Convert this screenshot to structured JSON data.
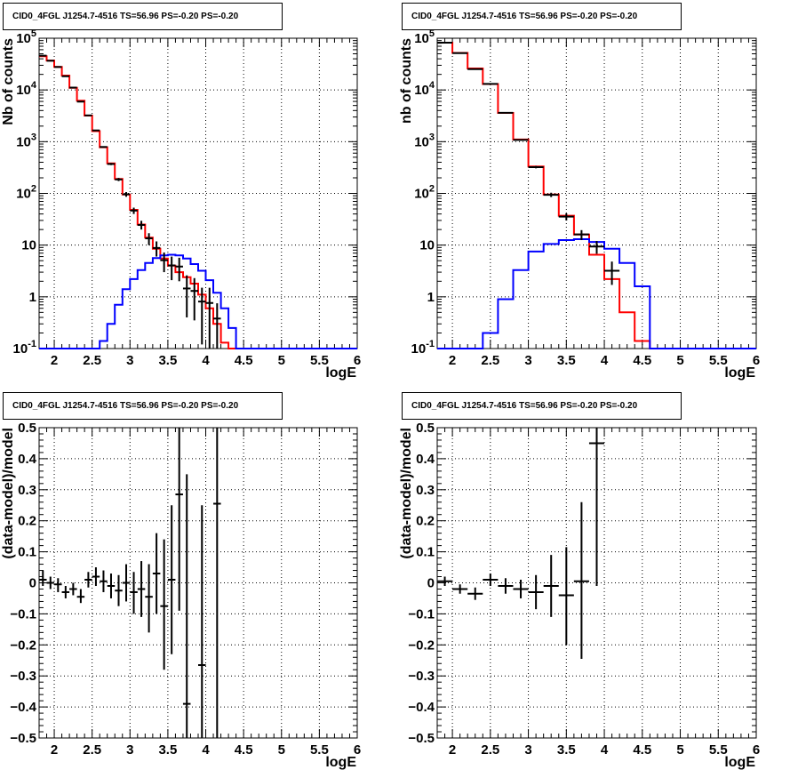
{
  "chart_data": [
    {
      "type": "histogram",
      "title": "CID0_4FGL J1254.7-4516 TS=56.96 PS=-0.20 PS=-0.20",
      "xlabel": "logE",
      "ylabel": "Nb of counts",
      "xlim": [
        1.8,
        6.0
      ],
      "ylim": [
        0.1,
        100000
      ],
      "yscale": "log",
      "grid": true,
      "xticks": [
        "2",
        "2.5",
        "3",
        "3.5",
        "4",
        "4.5",
        "5",
        "5.5",
        "6"
      ],
      "yticks": [
        "10^-1",
        "1",
        "10",
        "10^2",
        "10^3",
        "10^4",
        "10^5"
      ],
      "bin_edges": [
        1.8,
        1.9,
        2.0,
        2.1,
        2.2,
        2.3,
        2.4,
        2.5,
        2.6,
        2.7,
        2.8,
        2.9,
        3.0,
        3.1,
        3.2,
        3.3,
        3.4,
        3.5,
        3.6,
        3.7,
        3.8,
        3.9,
        4.0,
        4.1,
        4.2,
        4.3,
        4.4,
        4.5,
        4.6,
        4.7,
        4.8,
        4.9,
        5.0,
        5.1,
        5.2,
        5.3,
        5.4,
        5.5,
        5.6,
        5.7,
        5.8,
        5.9,
        6.0
      ],
      "series": [
        {
          "kind": "model-total",
          "color": "#ff0000",
          "values": [
            45000,
            37000,
            28000,
            19000,
            11000,
            6200,
            3200,
            1600,
            780,
            380,
            190,
            95,
            48,
            25,
            14,
            8.5,
            5.5,
            4,
            3,
            2.4,
            1.8,
            1.1,
            0.6,
            0.3,
            0.13,
            0.1,
            0.1,
            0.1,
            0.1,
            0.1,
            0.1,
            0.1,
            0.1,
            0.1,
            0.1,
            0.1,
            0.1,
            0.1,
            0.1,
            0.1,
            0.1,
            0.1
          ]
        },
        {
          "kind": "model-component",
          "color": "#0000ff",
          "values": [
            0.1,
            0.1,
            0.1,
            0.1,
            0.1,
            0.1,
            0.1,
            0.1,
            0.14,
            0.3,
            0.7,
            1.4,
            2.2,
            3.3,
            4.5,
            5.6,
            6.3,
            6.5,
            6.3,
            5.5,
            4.3,
            3.2,
            2.1,
            1.2,
            0.6,
            0.25,
            0.1,
            0.1,
            0.1,
            0.1,
            0.1,
            0.1,
            0.1,
            0.1,
            0.1,
            0.1,
            0.1,
            0.1,
            0.1,
            0.1,
            0.1,
            0.1
          ]
        },
        {
          "kind": "data",
          "color": "#000000",
          "points": [
            {
              "x": 1.85,
              "y": 46000,
              "ylo": 45800,
              "yhi": 46200
            },
            {
              "x": 1.95,
              "y": 36700,
              "ylo": 36500,
              "yhi": 36900
            },
            {
              "x": 2.05,
              "y": 27800,
              "ylo": 27600,
              "yhi": 28000
            },
            {
              "x": 2.15,
              "y": 18400,
              "ylo": 18250,
              "yhi": 18550
            },
            {
              "x": 2.25,
              "y": 11100,
              "ylo": 11000,
              "yhi": 11200
            },
            {
              "x": 2.35,
              "y": 5950,
              "ylo": 5880,
              "yhi": 6020
            },
            {
              "x": 2.45,
              "y": 3220,
              "ylo": 3170,
              "yhi": 3270
            },
            {
              "x": 2.55,
              "y": 1650,
              "ylo": 1610,
              "yhi": 1690
            },
            {
              "x": 2.65,
              "y": 790,
              "ylo": 765,
              "yhi": 815
            },
            {
              "x": 2.75,
              "y": 370,
              "ylo": 352,
              "yhi": 388
            },
            {
              "x": 2.85,
              "y": 186,
              "ylo": 173,
              "yhi": 199
            },
            {
              "x": 2.95,
              "y": 96,
              "ylo": 86,
              "yhi": 106
            },
            {
              "x": 3.05,
              "y": 46.5,
              "ylo": 40,
              "yhi": 53
            },
            {
              "x": 3.15,
              "y": 24.5,
              "ylo": 20,
              "yhi": 29.5
            },
            {
              "x": 3.25,
              "y": 13.5,
              "ylo": 10,
              "yhi": 17
            },
            {
              "x": 3.35,
              "y": 8.8,
              "ylo": 6,
              "yhi": 11.8
            },
            {
              "x": 3.45,
              "y": 5.1,
              "ylo": 3,
              "yhi": 7.2
            },
            {
              "x": 3.55,
              "y": 4.05,
              "ylo": 2.1,
              "yhi": 6
            },
            {
              "x": 3.65,
              "y": 3.85,
              "ylo": 2,
              "yhi": 5.7
            },
            {
              "x": 3.75,
              "y": 1.45,
              "ylo": 0.4,
              "yhi": 2.6
            },
            {
              "x": 3.85,
              "y": 1.3,
              "ylo": 0.35,
              "yhi": 2.3
            },
            {
              "x": 3.95,
              "y": 0.81,
              "ylo": 0.12,
              "yhi": 1.5
            },
            {
              "x": 4.05,
              "y": 0.76,
              "ylo": 0.1,
              "yhi": 1.5
            },
            {
              "x": 4.15,
              "y": 0.38,
              "ylo": 0.1,
              "yhi": 0.75
            }
          ]
        }
      ]
    },
    {
      "type": "histogram",
      "title": "CID0_4FGL J1254.7-4516 TS=56.96 PS=-0.20 PS=-0.20",
      "xlabel": "logE",
      "ylabel": "nb of counts",
      "xlim": [
        1.8,
        6.0
      ],
      "ylim": [
        0.1,
        100000
      ],
      "yscale": "log",
      "grid": true,
      "xticks": [
        "2",
        "2.5",
        "3",
        "3.5",
        "4",
        "4.5",
        "5",
        "5.5",
        "6"
      ],
      "yticks": [
        "10^-1",
        "1",
        "10",
        "10^2",
        "10^3",
        "10^4",
        "10^5"
      ],
      "bin_edges": [
        1.8,
        2.0,
        2.2,
        2.4,
        2.6,
        2.8,
        3.0,
        3.2,
        3.4,
        3.6,
        3.8,
        4.0,
        4.2,
        4.4,
        4.6,
        4.8,
        5.0,
        5.2,
        5.4,
        5.6,
        5.8,
        6.0
      ],
      "series": [
        {
          "kind": "model-total",
          "color": "#ff0000",
          "values": [
            82000,
            52000,
            26000,
            13000,
            3600,
            1100,
            330,
            95,
            37,
            16,
            6.5,
            2.2,
            0.5,
            0.14,
            0.1,
            0.1,
            0.1,
            0.1,
            0.1,
            0.1,
            0.1
          ]
        },
        {
          "kind": "model-component",
          "color": "#0000ff",
          "values": [
            0.1,
            0.1,
            0.1,
            0.2,
            0.9,
            3.3,
            7.5,
            10.5,
            12.5,
            13,
            11.5,
            8.5,
            4.5,
            1.6,
            0.1,
            0.1,
            0.1,
            0.1,
            0.1,
            0.1,
            0.1
          ]
        },
        {
          "kind": "data",
          "color": "#000000",
          "points": [
            {
              "x": 1.9,
              "y": 82000,
              "ylo": 81700,
              "yhi": 82300
            },
            {
              "x": 2.1,
              "y": 51600,
              "ylo": 51300,
              "yhi": 51900
            },
            {
              "x": 2.3,
              "y": 25300,
              "ylo": 25100,
              "yhi": 25500
            },
            {
              "x": 2.5,
              "y": 13100,
              "ylo": 12990,
              "yhi": 13210
            },
            {
              "x": 2.7,
              "y": 3610,
              "ylo": 3550,
              "yhi": 3670
            },
            {
              "x": 2.9,
              "y": 1080,
              "ylo": 1050,
              "yhi": 1110
            },
            {
              "x": 3.1,
              "y": 322,
              "ylo": 305,
              "yhi": 339
            },
            {
              "x": 3.3,
              "y": 94,
              "ylo": 85,
              "yhi": 103
            },
            {
              "x": 3.5,
              "y": 35.5,
              "ylo": 30,
              "yhi": 41
            },
            {
              "x": 3.7,
              "y": 16.1,
              "ylo": 12.5,
              "yhi": 19.5
            },
            {
              "x": 3.9,
              "y": 9.4,
              "ylo": 6.8,
              "yhi": 12
            },
            {
              "x": 4.1,
              "y": 3.2,
              "ylo": 1.7,
              "yhi": 4.8
            }
          ]
        }
      ]
    },
    {
      "type": "scatter",
      "title": "CID0_4FGL J1254.7-4516 TS=56.96 PS=-0.20 PS=-0.20",
      "xlabel": "logE",
      "ylabel": "(data-model)/model",
      "xlim": [
        1.8,
        6.0
      ],
      "ylim": [
        -0.5,
        0.5
      ],
      "grid": true,
      "xticks": [
        "2",
        "2.5",
        "3",
        "3.5",
        "4",
        "4.5",
        "5",
        "5.5",
        "6"
      ],
      "yticks": [
        "0.5",
        "0.4",
        "0.3",
        "0.2",
        "0.1",
        "0",
        "−0.1",
        "−0.2",
        "−0.3",
        "−0.4",
        "−0.5"
      ],
      "xerr": 0.05,
      "points": [
        {
          "x": 1.85,
          "y": 0.01,
          "ylo": -0.01,
          "yhi": 0.04
        },
        {
          "x": 1.95,
          "y": 0.0,
          "ylo": -0.02,
          "yhi": 0.02
        },
        {
          "x": 2.05,
          "y": -0.005,
          "ylo": -0.03,
          "yhi": 0.015
        },
        {
          "x": 2.15,
          "y": -0.03,
          "ylo": -0.05,
          "yhi": -0.01
        },
        {
          "x": 2.25,
          "y": -0.02,
          "ylo": -0.04,
          "yhi": 0.0
        },
        {
          "x": 2.35,
          "y": -0.045,
          "ylo": -0.065,
          "yhi": -0.02
        },
        {
          "x": 2.45,
          "y": 0.01,
          "ylo": -0.015,
          "yhi": 0.035
        },
        {
          "x": 2.55,
          "y": 0.02,
          "ylo": -0.01,
          "yhi": 0.05
        },
        {
          "x": 2.65,
          "y": 0.005,
          "ylo": -0.03,
          "yhi": 0.04
        },
        {
          "x": 2.75,
          "y": -0.01,
          "ylo": -0.05,
          "yhi": 0.03
        },
        {
          "x": 2.85,
          "y": -0.025,
          "ylo": -0.075,
          "yhi": 0.025
        },
        {
          "x": 2.95,
          "y": 0.0,
          "ylo": -0.06,
          "yhi": 0.06
        },
        {
          "x": 3.05,
          "y": -0.03,
          "ylo": -0.1,
          "yhi": 0.035
        },
        {
          "x": 3.15,
          "y": -0.02,
          "ylo": -0.11,
          "yhi": 0.07
        },
        {
          "x": 3.25,
          "y": -0.045,
          "ylo": -0.16,
          "yhi": 0.06
        },
        {
          "x": 3.35,
          "y": 0.03,
          "ylo": -0.1,
          "yhi": 0.16
        },
        {
          "x": 3.45,
          "y": -0.075,
          "ylo": -0.28,
          "yhi": 0.14
        },
        {
          "x": 3.55,
          "y": 0.01,
          "ylo": -0.23,
          "yhi": 0.25
        },
        {
          "x": 3.65,
          "y": 0.285,
          "ylo": -0.09,
          "yhi": 0.5
        },
        {
          "x": 3.75,
          "y": -0.39,
          "ylo": -0.5,
          "yhi": 0.35
        },
        {
          "x": 3.95,
          "y": -0.265,
          "ylo": -0.5,
          "yhi": 0.25
        },
        {
          "x": 4.15,
          "y": 0.255,
          "ylo": -0.5,
          "yhi": 0.5
        }
      ]
    },
    {
      "type": "scatter",
      "title": "CID0_4FGL J1254.7-4516 TS=56.96 PS=-0.20 PS=-0.20",
      "xlabel": "logE",
      "ylabel": "(data-model)/model",
      "xlim": [
        1.8,
        6.0
      ],
      "ylim": [
        -0.5,
        0.5
      ],
      "grid": true,
      "xticks": [
        "2",
        "2.5",
        "3",
        "3.5",
        "4",
        "4.5",
        "5",
        "5.5",
        "6"
      ],
      "yticks": [
        "0.5",
        "0.4",
        "0.3",
        "0.2",
        "0.1",
        "0",
        "−0.1",
        "−0.2",
        "−0.3",
        "−0.4",
        "−0.5"
      ],
      "xerr": 0.1,
      "points": [
        {
          "x": 1.9,
          "y": 0.005,
          "ylo": -0.01,
          "yhi": 0.02
        },
        {
          "x": 2.1,
          "y": -0.02,
          "ylo": -0.035,
          "yhi": -0.005
        },
        {
          "x": 2.3,
          "y": -0.035,
          "ylo": -0.055,
          "yhi": -0.015
        },
        {
          "x": 2.5,
          "y": 0.01,
          "ylo": -0.01,
          "yhi": 0.03
        },
        {
          "x": 2.7,
          "y": -0.01,
          "ylo": -0.035,
          "yhi": 0.015
        },
        {
          "x": 2.9,
          "y": -0.02,
          "ylo": -0.05,
          "yhi": 0.01
        },
        {
          "x": 3.1,
          "y": -0.03,
          "ylo": -0.085,
          "yhi": 0.025
        },
        {
          "x": 3.3,
          "y": -0.01,
          "ylo": -0.11,
          "yhi": 0.09
        },
        {
          "x": 3.5,
          "y": -0.04,
          "ylo": -0.2,
          "yhi": 0.115
        },
        {
          "x": 3.7,
          "y": 0.005,
          "ylo": -0.245,
          "yhi": 0.26
        },
        {
          "x": 3.9,
          "y": 0.45,
          "ylo": -0.01,
          "yhi": 0.5
        }
      ]
    }
  ]
}
